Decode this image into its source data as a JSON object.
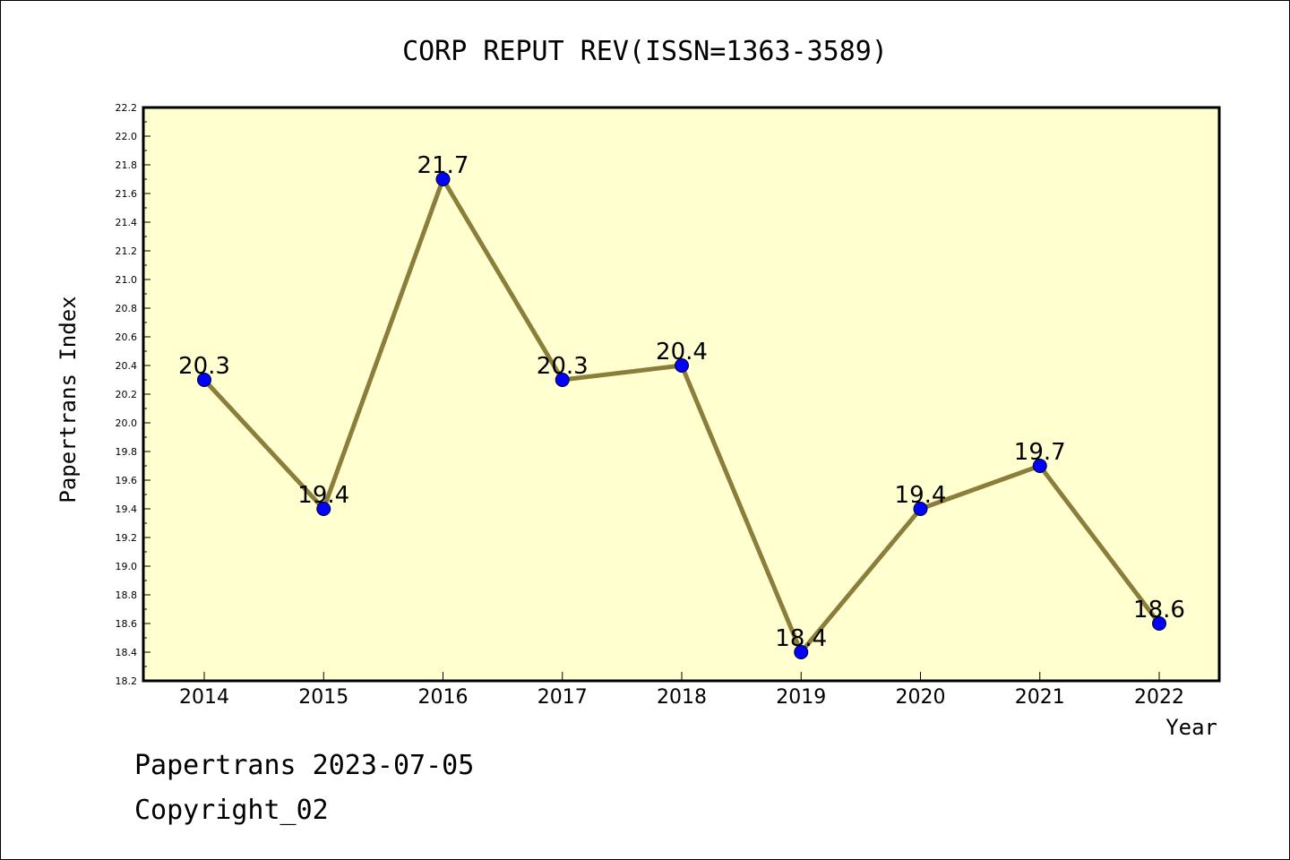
{
  "chart_data": {
    "type": "line",
    "title": "CORP REPUT REV(ISSN=1363-3589)",
    "xlabel": "Year",
    "ylabel": "Papertrans Index",
    "categories": [
      "2014",
      "2015",
      "2016",
      "2017",
      "2018",
      "2019",
      "2020",
      "2021",
      "2022"
    ],
    "series": [
      {
        "values": [
          20.3,
          19.4,
          21.7,
          20.3,
          20.4,
          18.4,
          19.4,
          19.7,
          18.6
        ],
        "data_labels": [
          "20.3",
          "19.4",
          "21.7",
          "20.3",
          "20.4",
          "18.4",
          "19.4",
          "19.7",
          "18.6"
        ]
      }
    ],
    "ylim": [
      18.2,
      22.2
    ],
    "yticks": [
      "18.2",
      "18.4",
      "18.6",
      "18.8",
      "19.0",
      "19.2",
      "19.4",
      "19.6",
      "19.8",
      "20.0",
      "20.2",
      "20.4",
      "20.6",
      "20.8",
      "21.0",
      "21.2",
      "21.4",
      "21.6",
      "21.8",
      "22.0",
      "22.2"
    ],
    "grid": false,
    "legend": "none"
  },
  "colors": {
    "plot_background": "#ffffd0",
    "line": "#8b7d3a",
    "marker": "#0000ff"
  },
  "footer": {
    "line1": "Papertrans 2023-07-05",
    "line2": "Copyright_02"
  }
}
